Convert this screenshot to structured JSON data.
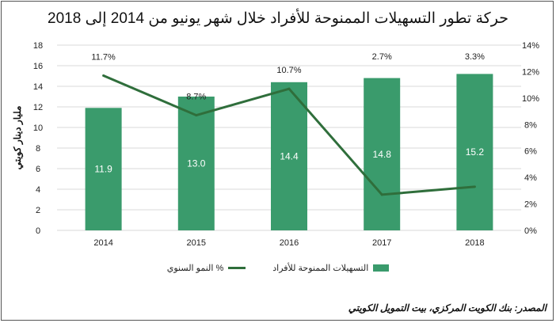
{
  "title": "حركة تطور التسهيلات الممنوحة للأفراد خلال شهر يونيو من  2014 إلى 2018",
  "source": "المصدر: بنك الكويت المركزي، بيت التمويل الكويتي",
  "colors": {
    "bar": "#3a9b6c",
    "line": "#2f6e3b",
    "grid": "#d9d9d9"
  },
  "chart_data": {
    "type": "bar",
    "title": "حركة تطور التسهيلات الممنوحة للأفراد خلال شهر يونيو من  2014 إلى 2018",
    "categories": [
      "2014",
      "2015",
      "2016",
      "2017",
      "2018"
    ],
    "ylabel": "مليار دينار كويتي",
    "ylim": [
      0,
      18
    ],
    "yticks": [
      "0",
      "2",
      "4",
      "6",
      "8",
      "10",
      "12",
      "14",
      "16",
      "18"
    ],
    "y2lim": [
      0,
      14
    ],
    "y2ticks": [
      "0%",
      "2%",
      "4%",
      "6%",
      "8%",
      "10%",
      "12%",
      "14%"
    ],
    "grid": true,
    "legend_position": "bottom",
    "series": [
      {
        "name": "التسهيلات الممنوحة للأفراد",
        "type": "bar",
        "axis": "left",
        "values": [
          11.9,
          13.0,
          14.4,
          14.8,
          15.2
        ],
        "labels": [
          "11.9",
          "13.0",
          "14.4",
          "14.8",
          "15.2"
        ]
      },
      {
        "name": "% النمو السنوي",
        "type": "line",
        "axis": "right",
        "values": [
          11.7,
          8.7,
          10.7,
          2.7,
          3.3
        ],
        "labels": [
          "11.7%",
          "8.7%",
          "10.7%",
          "2.7%",
          "3.3%"
        ]
      }
    ]
  }
}
